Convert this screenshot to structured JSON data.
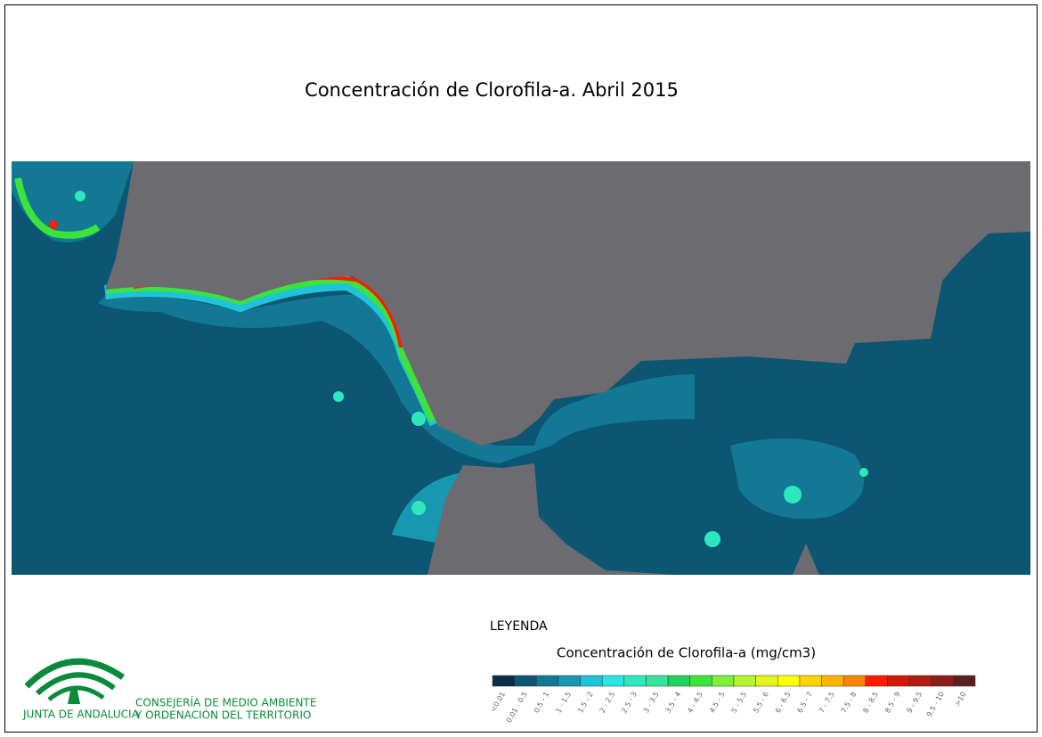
{
  "title": "Concentración de Clorofila-a. Abril 2015",
  "legend": {
    "heading": "LEYENDA",
    "subtitle": "Concentración de Clorofila-a (mg/cm3)",
    "classes": [
      {
        "label": "<0.01",
        "color": "#0a2e48"
      },
      {
        "label": "0.01 - 0.5",
        "color": "#0d5673"
      },
      {
        "label": "0.5 - 1",
        "color": "#137893"
      },
      {
        "label": "1 - 1.5",
        "color": "#1898b0"
      },
      {
        "label": "1.5 - 2",
        "color": "#1fc4d8"
      },
      {
        "label": "2 - 2.5",
        "color": "#25e6e2"
      },
      {
        "label": "2.5 - 3",
        "color": "#2de8bd"
      },
      {
        "label": "3 - 3.5",
        "color": "#35e49a"
      },
      {
        "label": "3.5 - 4",
        "color": "#1fd35c"
      },
      {
        "label": "4 - 4.5",
        "color": "#3be33a"
      },
      {
        "label": "4.5 - 5",
        "color": "#7ef03a"
      },
      {
        "label": "5 - 5.5",
        "color": "#b5f52d"
      },
      {
        "label": "5.5 - 6",
        "color": "#e4f41a"
      },
      {
        "label": "6 - 6.5",
        "color": "#ffff00"
      },
      {
        "label": "6.5 - 7",
        "color": "#ffd500"
      },
      {
        "label": "7 - 7.5",
        "color": "#ffb300"
      },
      {
        "label": "7.5 - 8",
        "color": "#ff8500"
      },
      {
        "label": "8 - 8.5",
        "color": "#ff1a00"
      },
      {
        "label": "8.5 - 9",
        "color": "#d41508"
      },
      {
        "label": "9 - 9.5",
        "color": "#b01c12"
      },
      {
        "label": "9.5 - 10",
        "color": "#8a1e18"
      },
      {
        "label": ">10",
        "color": "#5e1f1f"
      }
    ]
  },
  "logo": {
    "name": "JUNTA DE ANDALUCIA",
    "department": [
      "CONSEJERÍA DE MEDIO AMBIENTE",
      "Y ORDENACIÓN DEL TERRITORIO"
    ]
  }
}
